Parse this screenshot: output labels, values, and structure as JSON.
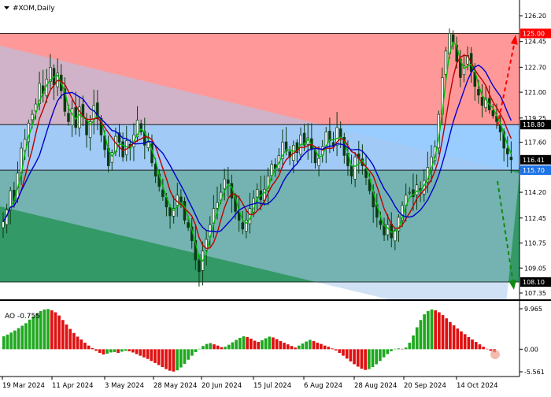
{
  "header": {
    "symbol_title": "#XOM,Daily"
  },
  "indicator": {
    "label": "AO -0.755"
  },
  "price_axis": {
    "ticks": [
      "126.20",
      "124.45",
      "122.70",
      "121.00",
      "119.25",
      "117.60",
      "115.85",
      "114.20",
      "112.45",
      "110.75",
      "109.05",
      "107.35"
    ],
    "tick_values": [
      126.2,
      124.45,
      122.7,
      121.0,
      119.25,
      117.6,
      115.85,
      114.2,
      112.45,
      110.75,
      109.05,
      107.35
    ]
  },
  "ao_axis": {
    "ticks": [
      "9.965",
      "0.00",
      "-5.561"
    ],
    "tick_values": [
      9.965,
      0,
      -5.561
    ]
  },
  "levels": [
    {
      "label": "125.00",
      "value": 125.0,
      "color": "#ff0000"
    },
    {
      "label": "118.80",
      "value": 118.8,
      "color": "#000000"
    },
    {
      "label": "116.41",
      "value": 116.41,
      "color": "#000000"
    },
    {
      "label": "115.70",
      "value": 115.7,
      "color": "#1e73e6"
    },
    {
      "label": "108.10",
      "value": 108.1,
      "color": "#000000"
    }
  ],
  "date_axis": {
    "labels": [
      "19 Mar 2024",
      "11 Apr 2024",
      "3 May 2024",
      "28 May 2024",
      "20 Jun 2024",
      "15 Jul 2024",
      "6 Aug 2024",
      "28 Aug 2024",
      "20 Sep 2024",
      "14 Oct 2024"
    ]
  },
  "zones": {
    "resistance_color": "#ff9999",
    "pivot_color": "#99ccff",
    "support_color": "#339966",
    "channel_color": "#a9c8ee"
  },
  "chart_data": {
    "type": "candlestick",
    "x_start": "19 Mar 2024",
    "series": [
      {
        "name": "",
        "color": "#00bb00"
      },
      {
        "name": "",
        "color": "#bb0000"
      },
      {
        "name": "",
        "color": "#0000cc"
      }
    ],
    "close": [
      112.2,
      113.0,
      114.3,
      113.6,
      115.5,
      117.2,
      117.8,
      118.9,
      119.5,
      120.2,
      121.6,
      120.9,
      121.9,
      122.7,
      121.5,
      122.3,
      121.1,
      119.7,
      119.0,
      119.9,
      118.6,
      120.0,
      119.3,
      118.1,
      119.0,
      120.1,
      119.2,
      118.1,
      117.1,
      116.0,
      116.9,
      118.0,
      117.6,
      116.6,
      117.7,
      117.2,
      118.1,
      119.1,
      118.3,
      117.4,
      117.6,
      116.2,
      115.3,
      114.6,
      113.9,
      113.2,
      112.6,
      113.1,
      114.0,
      113.4,
      112.3,
      111.8,
      110.9,
      109.6,
      108.8,
      110.2,
      111.0,
      112.0,
      113.1,
      113.5,
      114.2,
      115.1,
      114.8,
      113.8,
      112.9,
      112.3,
      111.7,
      112.3,
      113.1,
      113.8,
      114.4,
      113.7,
      114.4,
      115.3,
      116.1,
      115.8,
      116.7,
      117.6,
      117.0,
      116.6,
      117.4,
      116.9,
      118.1,
      117.4,
      117.9,
      117.1,
      116.2,
      116.5,
      117.3,
      118.3,
      117.7,
      117.3,
      118.6,
      117.9,
      116.7,
      116.0,
      115.3,
      116.6,
      116.5,
      116.0,
      115.2,
      114.3,
      113.2,
      112.5,
      112.0,
      111.3,
      112.0,
      111.1,
      111.6,
      112.5,
      113.3,
      114.0,
      114.2,
      113.9,
      114.7,
      114.3,
      115.0,
      115.9,
      116.6,
      117.3,
      119.5,
      122.0,
      123.8,
      125.0,
      124.4,
      123.1,
      122.0,
      122.8,
      123.5,
      122.4,
      121.4,
      120.8,
      120.1,
      120.6,
      119.8,
      119.4,
      119.0,
      118.3,
      117.2,
      116.8,
      116.41
    ],
    "ao": [
      3.2,
      3.6,
      4.1,
      4.6,
      5.2,
      5.8,
      6.4,
      7.3,
      8.1,
      8.8,
      9.4,
      9.8,
      9.9,
      9.6,
      9.1,
      8.3,
      7.2,
      6.1,
      5.0,
      4.0,
      3.1,
      2.4,
      1.6,
      0.9,
      0.3,
      -0.4,
      -0.9,
      -1.3,
      -1.1,
      -0.8,
      -0.7,
      -0.9,
      -0.6,
      -0.4,
      -0.5,
      -0.8,
      -1.2,
      -1.6,
      -2.0,
      -2.4,
      -2.9,
      -3.4,
      -3.9,
      -4.4,
      -4.9,
      -5.3,
      -5.5,
      -5.2,
      -4.5,
      -3.6,
      -2.6,
      -1.6,
      -0.7,
      0.1,
      0.8,
      1.3,
      1.5,
      1.2,
      0.9,
      0.5,
      0.6,
      1.1,
      1.7,
      2.3,
      2.8,
      3.2,
      3.0,
      2.6,
      2.1,
      1.8,
      2.2,
      2.7,
      3.1,
      2.9,
      2.5,
      2.0,
      1.6,
      1.2,
      0.8,
      0.4,
      0.9,
      1.4,
      1.9,
      2.3,
      2.0,
      1.6,
      1.3,
      0.9,
      0.6,
      0.2,
      -0.3,
      -0.9,
      -1.6,
      -2.3,
      -3.0,
      -3.7,
      -4.3,
      -4.8,
      -5.1,
      -4.9,
      -4.4,
      -3.7,
      -2.9,
      -2.0,
      -1.2,
      -0.5,
      0.1,
      0.2,
      0.1,
      0.4,
      1.6,
      3.4,
      5.4,
      7.2,
      8.6,
      9.4,
      9.8,
      9.6,
      9.1,
      8.4,
      7.6,
      6.7,
      5.9,
      5.1,
      4.4,
      3.7,
      3.0,
      2.4,
      1.8,
      1.2,
      0.6,
      0.1,
      -0.4,
      -0.755
    ],
    "ylim": [
      107.35,
      126.2
    ],
    "ao_ylim": [
      -5.561,
      9.965
    ]
  }
}
